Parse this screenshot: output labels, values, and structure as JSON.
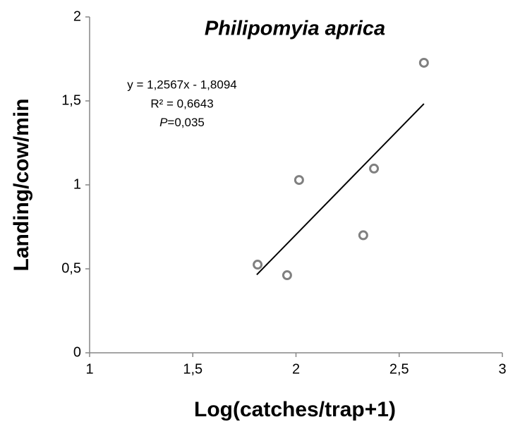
{
  "chart_data": {
    "type": "scatter",
    "title": "Philipomyia aprica",
    "x_label": "Log(catches/trap+1)",
    "y_label": "Landing/cow/min",
    "x": [
      1.814,
      1.957,
      2.015,
      2.326,
      2.378,
      2.62
    ],
    "y": [
      0.525,
      0.462,
      1.029,
      0.7,
      1.097,
      1.727
    ],
    "color": "#808080",
    "trendline": {
      "x": [
        1.81,
        2.62
      ],
      "y": [
        0.465,
        1.483
      ],
      "color": "#000000"
    },
    "annotations": [
      "y = 1,2567x - 1,8094",
      "R² = 0,6643"
    ],
    "p_annotation": {
      "label": "P",
      "text": "=0,035"
    },
    "xlim": [
      1,
      3
    ],
    "xticks": [
      1,
      {
        "value": 1.5,
        "label": "1,5"
      },
      2,
      {
        "value": 2.5,
        "label": "2,5"
      },
      3
    ],
    "ylim": [
      0,
      2
    ],
    "yticks": [
      0,
      {
        "value": 0.5,
        "label": "0,5"
      },
      1,
      {
        "value": 1.5,
        "label": "1,5"
      },
      2
    ],
    "grid": false
  }
}
